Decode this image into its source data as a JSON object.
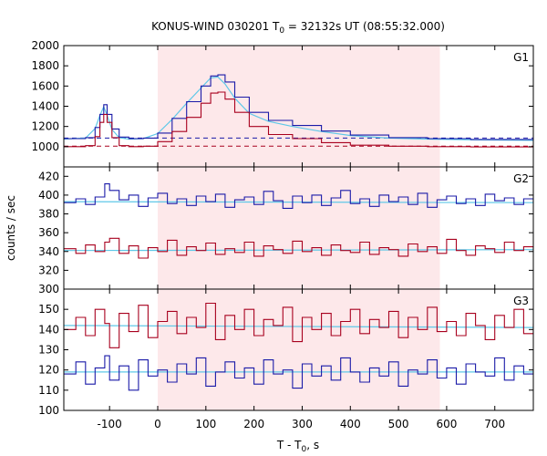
{
  "chart_data": {
    "type": "line",
    "title": {
      "main": "KONUS-WIND 030201 T",
      "sub": "0",
      "rest": " = 32132s UT (08:55:32.000)"
    },
    "xlabel": {
      "main": "T - T",
      "sub": "0",
      "rest": ", s"
    },
    "ylabel": "counts / sec",
    "xlim": [
      -195,
      780
    ],
    "xticks": [
      -100,
      0,
      100,
      200,
      300,
      400,
      500,
      600,
      700
    ],
    "highlight_interval": [
      0,
      586
    ],
    "highlight_color": "#fde8ea",
    "colors": {
      "cyan": "#5fc8e8",
      "blue": "#1a1aa8",
      "red": "#a8001e"
    },
    "panels": [
      {
        "label": "G1",
        "ylim": [
          800,
          2000
        ],
        "yticks": [
          800,
          1000,
          1200,
          1400,
          1600,
          1800,
          2000
        ],
        "ytick_labels": [
          "",
          "1000",
          "1200",
          "1400",
          "1600",
          "1800",
          "2000"
        ],
        "baselines": [
          {
            "color": "blue",
            "value": 1085
          },
          {
            "color": "red",
            "value": 1005
          }
        ],
        "series": [
          {
            "color": "cyan",
            "smooth": true,
            "x": [
              -195,
              -150,
              -130,
              -120,
              -112,
              -105,
              -95,
              -80,
              -60,
              -30,
              0,
              30,
              60,
              90,
              110,
              125,
              140,
              160,
              190,
              230,
              280,
              340,
              400,
              480,
              560,
              650,
              780
            ],
            "y": [
              1075,
              1085,
              1180,
              1310,
              1395,
              1310,
              1170,
              1090,
              1075,
              1080,
              1130,
              1270,
              1430,
              1580,
              1680,
              1690,
              1620,
              1480,
              1330,
              1250,
              1200,
              1150,
              1110,
              1085,
              1075,
              1068,
              1063
            ]
          },
          {
            "color": "blue",
            "smooth": false,
            "x": [
              -195,
              -150,
              -130,
              -120,
              -112,
              -105,
              -95,
              -80,
              -60,
              -30,
              0,
              30,
              60,
              90,
              110,
              125,
              140,
              160,
              190,
              230,
              280,
              340,
              400,
              480,
              560,
              650,
              780
            ],
            "y": [
              1080,
              1090,
              1190,
              1320,
              1415,
              1320,
              1175,
              1095,
              1080,
              1085,
              1135,
              1280,
              1445,
              1600,
              1700,
              1710,
              1640,
              1490,
              1340,
              1260,
              1210,
              1155,
              1115,
              1090,
              1080,
              1072,
              1068
            ]
          },
          {
            "color": "red",
            "smooth": false,
            "x": [
              -195,
              -150,
              -130,
              -120,
              -112,
              -105,
              -95,
              -80,
              -60,
              -30,
              0,
              30,
              60,
              90,
              110,
              125,
              140,
              160,
              190,
              230,
              280,
              340,
              400,
              480,
              560,
              650,
              780
            ],
            "y": [
              1000,
              1010,
              1100,
              1240,
              1320,
              1240,
              1090,
              1010,
              1000,
              1005,
              1050,
              1150,
              1290,
              1430,
              1530,
              1540,
              1470,
              1340,
              1200,
              1120,
              1080,
              1040,
              1015,
              1005,
              1000,
              998,
              995
            ]
          }
        ]
      },
      {
        "label": "G2",
        "ylim": [
          300,
          430
        ],
        "yticks": [
          300,
          320,
          340,
          360,
          380,
          400,
          420
        ],
        "ytick_labels": [
          "300",
          "320",
          "340",
          "360",
          "380",
          "400",
          "420"
        ],
        "series": [
          {
            "color": "cyan",
            "smooth": true,
            "x": [
              -195,
              780
            ],
            "y": [
              393,
              392
            ]
          },
          {
            "color": "cyan",
            "smooth": true,
            "x": [
              -195,
              780
            ],
            "y": [
              341,
              342
            ]
          },
          {
            "color": "blue",
            "smooth": false,
            "x": [
              -195,
              -170,
              -150,
              -130,
              -110,
              -100,
              -80,
              -60,
              -40,
              -20,
              0,
              20,
              40,
              60,
              80,
              100,
              120,
              140,
              160,
              180,
              200,
              220,
              240,
              260,
              280,
              300,
              320,
              340,
              360,
              380,
              400,
              420,
              440,
              460,
              480,
              500,
              520,
              540,
              560,
              580,
              600,
              620,
              640,
              660,
              680,
              700,
              720,
              740,
              760,
              780
            ],
            "y": [
              392,
              396,
              390,
              398,
              412,
              405,
              395,
              400,
              388,
              397,
              402,
              391,
              396,
              389,
              399,
              393,
              401,
              387,
              395,
              398,
              390,
              404,
              394,
              386,
              399,
              392,
              400,
              389,
              397,
              405,
              391,
              396,
              388,
              400,
              393,
              398,
              390,
              402,
              387,
              395,
              399,
              391,
              396,
              389,
              401,
              394,
              397,
              390,
              396,
              392
            ]
          },
          {
            "color": "red",
            "smooth": false,
            "x": [
              -195,
              -170,
              -150,
              -130,
              -110,
              -100,
              -80,
              -60,
              -40,
              -20,
              0,
              20,
              40,
              60,
              80,
              100,
              120,
              140,
              160,
              180,
              200,
              220,
              240,
              260,
              280,
              300,
              320,
              340,
              360,
              380,
              400,
              420,
              440,
              460,
              480,
              500,
              520,
              540,
              560,
              580,
              600,
              620,
              640,
              660,
              680,
              700,
              720,
              740,
              760,
              780
            ],
            "y": [
              343,
              338,
              347,
              340,
              350,
              354,
              338,
              346,
              333,
              344,
              340,
              352,
              336,
              345,
              341,
              349,
              337,
              343,
              339,
              350,
              335,
              346,
              342,
              338,
              351,
              340,
              344,
              336,
              347,
              341,
              339,
              350,
              337,
              344,
              342,
              335,
              348,
              340,
              345,
              338,
              353,
              341,
              336,
              346,
              343,
              339,
              350,
              341,
              345,
              340
            ]
          }
        ]
      },
      {
        "label": "G3",
        "ylim": [
          100,
          160
        ],
        "yticks": [
          100,
          110,
          120,
          130,
          140,
          150
        ],
        "ytick_labels": [
          "100",
          "110",
          "120",
          "130",
          "140",
          "150"
        ],
        "series": [
          {
            "color": "cyan",
            "smooth": true,
            "x": [
              -195,
              780
            ],
            "y": [
              142,
              141
            ]
          },
          {
            "color": "cyan",
            "smooth": true,
            "x": [
              -195,
              780
            ],
            "y": [
              119,
              119
            ]
          },
          {
            "color": "red",
            "smooth": false,
            "x": [
              -195,
              -170,
              -150,
              -130,
              -110,
              -100,
              -80,
              -60,
              -40,
              -20,
              0,
              20,
              40,
              60,
              80,
              100,
              120,
              140,
              160,
              180,
              200,
              220,
              240,
              260,
              280,
              300,
              320,
              340,
              360,
              380,
              400,
              420,
              440,
              460,
              480,
              500,
              520,
              540,
              560,
              580,
              600,
              620,
              640,
              660,
              680,
              700,
              720,
              740,
              760,
              780
            ],
            "y": [
              140,
              146,
              137,
              150,
              143,
              131,
              148,
              139,
              152,
              136,
              144,
              149,
              138,
              146,
              141,
              153,
              135,
              147,
              140,
              150,
              137,
              145,
              142,
              151,
              134,
              146,
              140,
              148,
              137,
              144,
              150,
              138,
              145,
              141,
              149,
              136,
              146,
              140,
              151,
              139,
              144,
              137,
              148,
              142,
              135,
              147,
              141,
              150,
              138,
              143
            ]
          },
          {
            "color": "blue",
            "smooth": false,
            "x": [
              -195,
              -170,
              -150,
              -130,
              -110,
              -100,
              -80,
              -60,
              -40,
              -20,
              0,
              20,
              40,
              60,
              80,
              100,
              120,
              140,
              160,
              180,
              200,
              220,
              240,
              260,
              280,
              300,
              320,
              340,
              360,
              380,
              400,
              420,
              440,
              460,
              480,
              500,
              520,
              540,
              560,
              580,
              600,
              620,
              640,
              660,
              680,
              700,
              720,
              740,
              760,
              780
            ],
            "y": [
              118,
              124,
              113,
              121,
              127,
              115,
              122,
              110,
              125,
              117,
              120,
              114,
              123,
              118,
              126,
              112,
              119,
              124,
              116,
              121,
              113,
              125,
              118,
              120,
              111,
              123,
              117,
              122,
              115,
              126,
              119,
              114,
              121,
              117,
              124,
              112,
              120,
              118,
              125,
              116,
              121,
              113,
              123,
              119,
              117,
              126,
              115,
              122,
              118,
              121
            ]
          }
        ]
      }
    ]
  }
}
